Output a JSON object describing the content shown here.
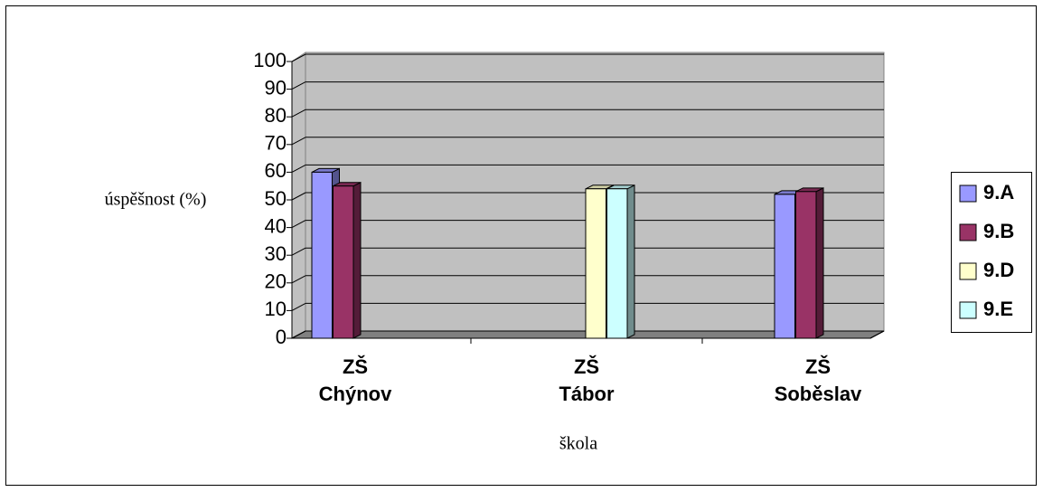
{
  "chart_data": {
    "type": "bar3d",
    "y_label": "úspěšnost (%)",
    "x_label": "škola",
    "categories": [
      "ZŠ\nChýnov",
      "ZŠ\nTábor",
      "ZŠ\nSoběslav"
    ],
    "series": [
      {
        "name": "9.A",
        "color": "#9999ff",
        "values": [
          60,
          null,
          52
        ]
      },
      {
        "name": "9.B",
        "color": "#993366",
        "values": [
          55,
          null,
          53
        ]
      },
      {
        "name": "9.D",
        "color": "#ffffcc",
        "values": [
          null,
          54,
          null
        ]
      },
      {
        "name": "9.E",
        "color": "#ccffff",
        "values": [
          null,
          54,
          null
        ]
      }
    ],
    "ylim": [
      0,
      100
    ],
    "yticks": [
      0,
      10,
      20,
      30,
      40,
      50,
      60,
      70,
      80,
      90,
      100
    ],
    "grid": true,
    "legend": "right"
  }
}
